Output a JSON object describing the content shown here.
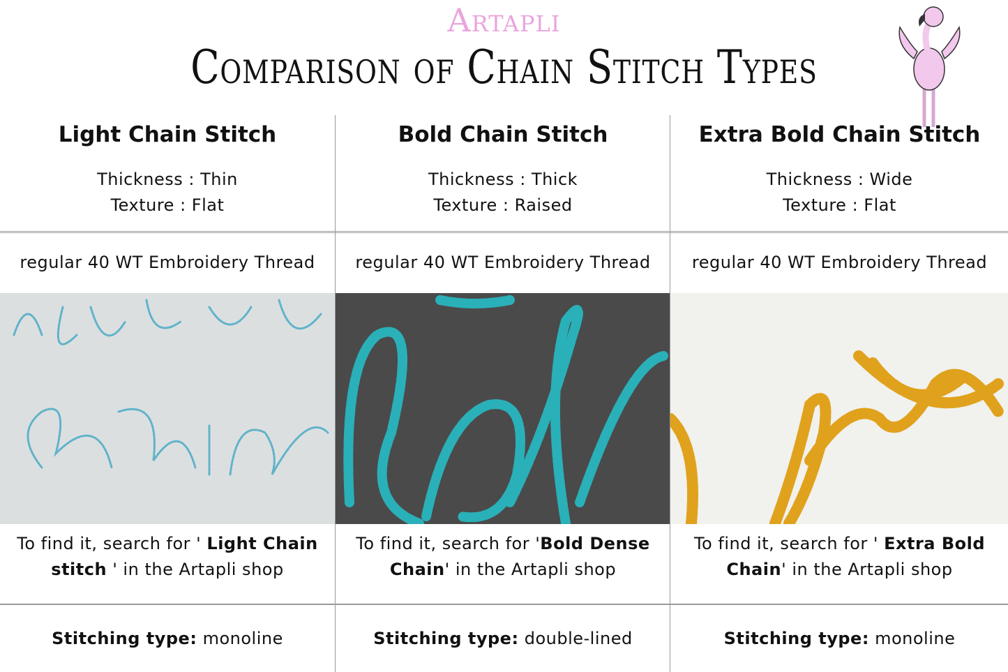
{
  "brand": "Artapli",
  "title": "Comparison of Chain Stitch Types",
  "columns": [
    {
      "heading": "Light Chain Stitch",
      "thickness": "Thickness : Thin",
      "texture": "Texture : Flat",
      "thread": "regular 40 WT Embroidery Thread",
      "search_pre": "To find it, search for ' ",
      "search_bold1": "Light Chain",
      "search_bold2": "stitch",
      "search_post": " ' in the Artapli shop",
      "stitch_label": "Stitching type:",
      "stitch_value": "monoline",
      "photo_bg": "#dcdfe0",
      "thread_color": "#5fb3c9"
    },
    {
      "heading": "Bold Chain Stitch",
      "thickness": "Thickness : Thick",
      "texture": "Texture : Raised",
      "thread": "regular 40 WT Embroidery Thread",
      "search_pre": "To find it, search for '",
      "search_bold1": "Bold Dense",
      "search_bold2": "Chain",
      "search_post": "' in the Artapli shop",
      "stitch_label": "Stitching type:",
      "stitch_value": "double-lined",
      "photo_bg": "#4a4a4a",
      "thread_color": "#2ab0b8"
    },
    {
      "heading": "Extra Bold Chain Stitch",
      "thickness": "Thickness : Wide",
      "texture": "Texture : Flat",
      "thread": "regular 40 WT Embroidery Thread",
      "search_pre": "To find it, search for ' ",
      "search_bold1": "Extra Bold",
      "search_bold2": "Chain",
      "search_post": "' in the Artapli shop",
      "stitch_label": "Stitching type:",
      "stitch_value": "monoline",
      "photo_bg": "#f1f1ee",
      "thread_color": "#e0a21c"
    }
  ]
}
